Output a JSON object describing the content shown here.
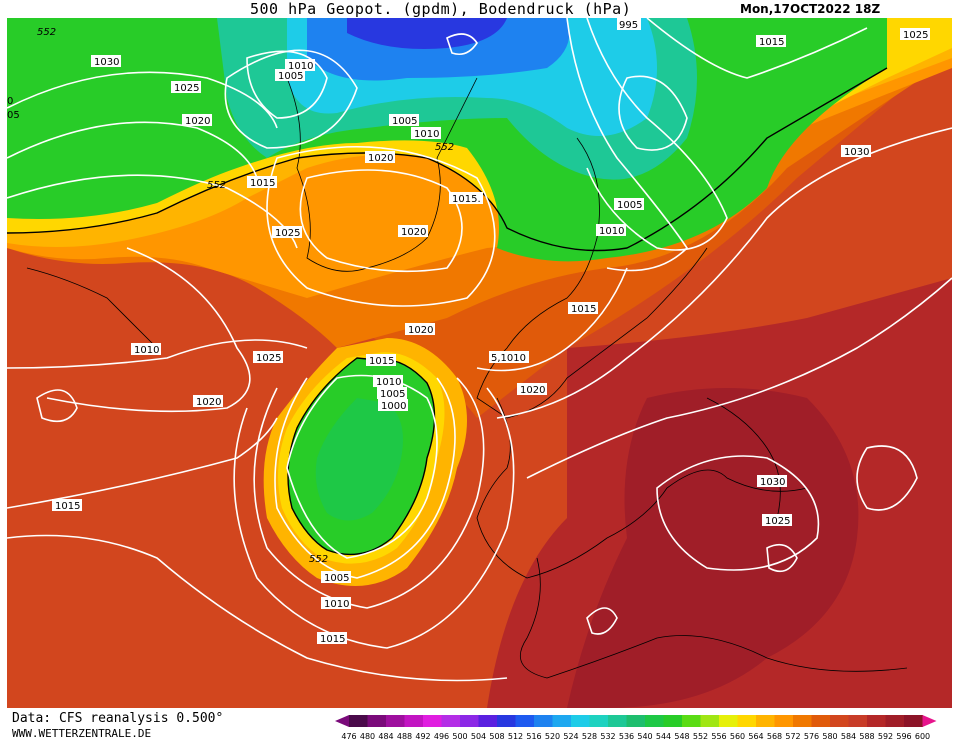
{
  "header": {
    "title": "500 hPa Geopot. (gpdm), Bodendruck (hPa)",
    "date": "Mon,17OCT2022 18Z"
  },
  "footer": {
    "credit": "Data: CFS reanalysis 0.500°",
    "site": "WWW.WETTERZENTRALE.DE"
  },
  "legend": {
    "values": [
      "476",
      "480",
      "484",
      "488",
      "492",
      "496",
      "500",
      "504",
      "508",
      "512",
      "516",
      "520",
      "524",
      "528",
      "532",
      "536",
      "540",
      "544",
      "548",
      "552",
      "556",
      "560",
      "564",
      "568",
      "572",
      "576",
      "580",
      "584",
      "588",
      "592",
      "596",
      "600"
    ],
    "colors": [
      "#4a0a4a",
      "#7a0a7a",
      "#9e0f9e",
      "#c214c2",
      "#e01ee0",
      "#b42ee6",
      "#8c28e6",
      "#5a20e0",
      "#2838e0",
      "#1e5af0",
      "#1e82f0",
      "#1ea8f0",
      "#1ecce8",
      "#1ed2c0",
      "#1ec896",
      "#1ebe6e",
      "#1ec846",
      "#28cc28",
      "#5adc14",
      "#a0e614",
      "#e6f00a",
      "#ffd700",
      "#ffb400",
      "#ff9600",
      "#f07800",
      "#e05a0a",
      "#d2461e",
      "#c83c28",
      "#b42828",
      "#a01e28",
      "#8c1428",
      "#e6148c"
    ],
    "low_color": "#7a0a7a",
    "high_color": "#e6148c"
  },
  "map": {
    "marker_552": "552",
    "isobars": [
      {
        "label": "552"
      },
      {
        "label": "1030"
      },
      {
        "label": "1025"
      },
      {
        "label": "1020"
      },
      {
        "label": "1010"
      },
      {
        "label": "1005"
      },
      {
        "label": "1010"
      },
      {
        "label": "1005"
      },
      {
        "label": "552"
      },
      {
        "label": "1015"
      },
      {
        "label": "552"
      },
      {
        "label": "1020"
      },
      {
        "label": "1015."
      },
      {
        "label": "1025"
      },
      {
        "label": "1020"
      },
      {
        "label": "995"
      },
      {
        "label": "1015"
      },
      {
        "label": "1025"
      },
      {
        "label": "1030"
      },
      {
        "label": "1005"
      },
      {
        "label": "1010"
      },
      {
        "label": "1015"
      },
      {
        "label": "1020"
      },
      {
        "label": "1010"
      },
      {
        "label": "1025"
      },
      {
        "label": "1015"
      },
      {
        "label": "5,1010"
      },
      {
        "label": "1010"
      },
      {
        "label": "1005"
      },
      {
        "label": "1000"
      },
      {
        "label": "1020"
      },
      {
        "label": "1020"
      },
      {
        "label": "1015"
      },
      {
        "label": "1030"
      },
      {
        "label": "1025"
      },
      {
        "label": "552"
      },
      {
        "label": "1005"
      },
      {
        "label": "1010"
      },
      {
        "label": "1015"
      },
      {
        "label": "0"
      },
      {
        "label": "05"
      }
    ]
  }
}
